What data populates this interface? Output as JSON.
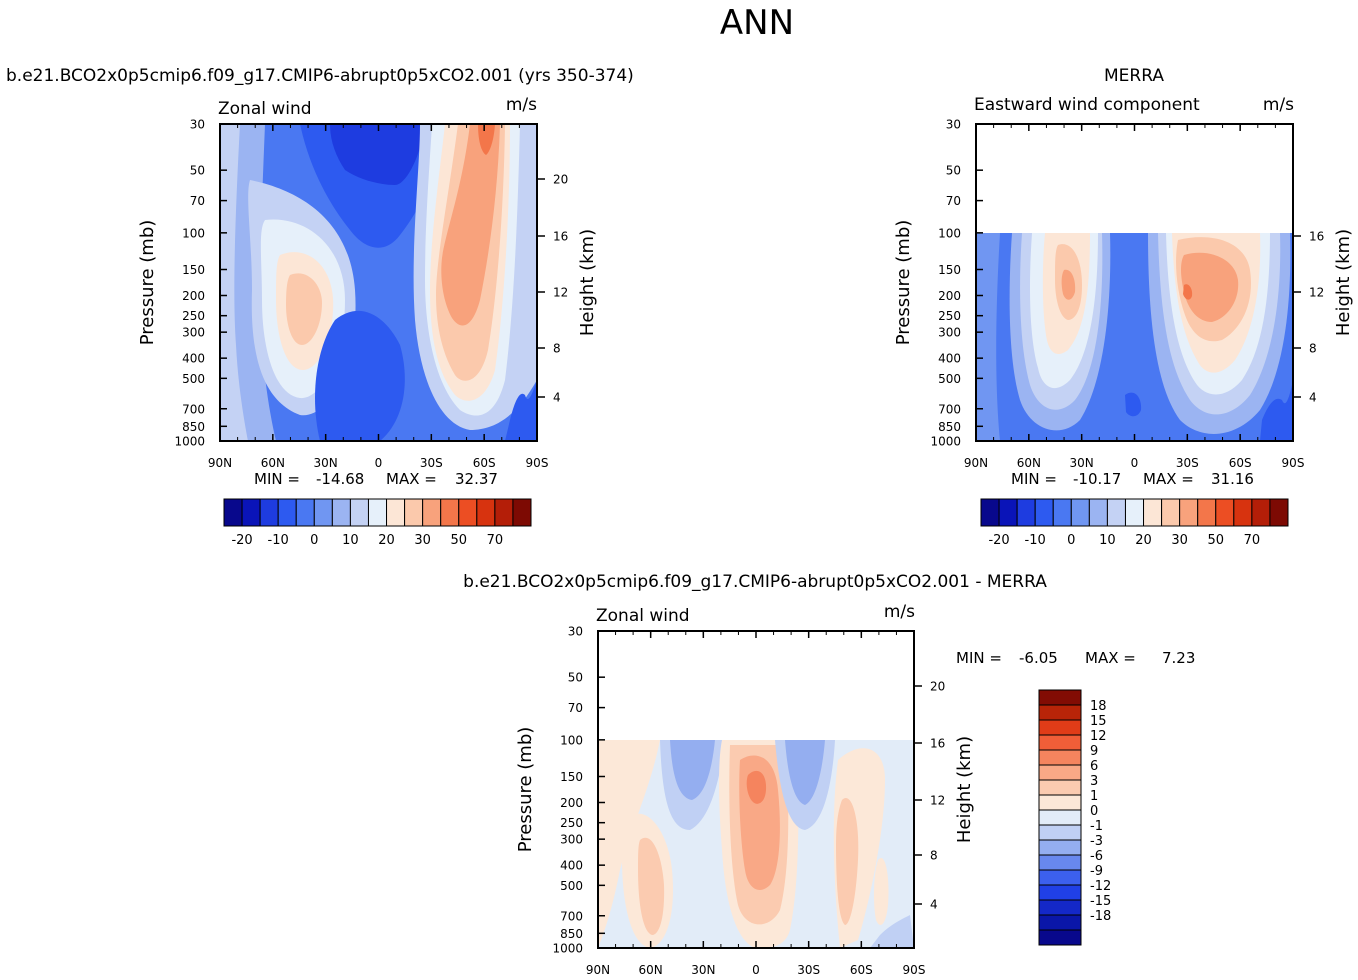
{
  "main_title": "ANN",
  "colors": {
    "left_scale": [
      "#08088c",
      "#0a14b8",
      "#1e3ce0",
      "#2d5af0",
      "#4a78f2",
      "#7096f2",
      "#9bb4f2",
      "#c4d2f4",
      "#e6f0fa",
      "#fce6d6",
      "#fbc9ac",
      "#f8a27c",
      "#f3764a",
      "#ec4e23",
      "#d7330f",
      "#b41e08",
      "#7d0a03"
    ],
    "diff_scale": [
      "#08088c",
      "#0a16a8",
      "#1428c8",
      "#2040e6",
      "#3c60ee",
      "#6888ee",
      "#94aef0",
      "#c0d0f4",
      "#e2ecf8",
      "#fce8d8",
      "#fbcbb0",
      "#f9a886",
      "#f5845e",
      "#f05e38",
      "#e03c18",
      "#b82408",
      "#820c04"
    ],
    "frame": "#000000"
  },
  "chart_data": [
    {
      "type": "contour",
      "name": "model",
      "title": "b.e21.BCO2x0p5cmip6.f09_g17.CMIP6-abrupt0p5xCO2.001 (yrs 350-374)",
      "subtitle_left": "Zonal wind",
      "subtitle_right": "m/s",
      "xlabel": "",
      "ylabel": "Pressure (mb)",
      "ylabel_right": "Height (km)",
      "x_ticks": [
        "90N",
        "60N",
        "30N",
        "0",
        "30S",
        "60S",
        "90S"
      ],
      "y_ticks": [
        "30",
        "50",
        "70",
        "100",
        "150",
        "200",
        "250",
        "300",
        "400",
        "500",
        "700",
        "850",
        "1000"
      ],
      "height_ticks": [
        "20",
        "16",
        "12",
        "8",
        "4"
      ],
      "min_label": "MIN =",
      "min_value": "-14.68",
      "max_label": "MAX =",
      "max_value": "32.37",
      "colorbar_labels": [
        "-20",
        "-10",
        "0",
        "10",
        "20",
        "30",
        "50",
        "70"
      ],
      "jets": [
        {
          "lat": -45,
          "p": 200,
          "max": 32.37
        },
        {
          "lat": 30,
          "p": 200,
          "max": 22
        }
      ]
    },
    {
      "type": "contour",
      "name": "obs",
      "title": "MERRA",
      "subtitle_left": "Eastward wind component",
      "subtitle_right": "m/s",
      "ylabel": "Pressure (mb)",
      "ylabel_right": "Height (km)",
      "x_ticks": [
        "90N",
        "60N",
        "30N",
        "0",
        "30S",
        "60S",
        "90S"
      ],
      "y_ticks": [
        "30",
        "50",
        "70",
        "100",
        "150",
        "200",
        "250",
        "300",
        "400",
        "500",
        "700",
        "850",
        "1000"
      ],
      "height_ticks": [
        "16",
        "12",
        "8",
        "4"
      ],
      "min_label": "MIN =",
      "min_value": "-10.17",
      "max_label": "MAX =",
      "max_value": "31.16",
      "colorbar_labels": [
        "-20",
        "-10",
        "0",
        "10",
        "20",
        "30",
        "50",
        "70"
      ],
      "data_top_p": 100
    },
    {
      "type": "contour",
      "name": "difference",
      "title": "b.e21.BCO2x0p5cmip6.f09_g17.CMIP6-abrupt0p5xCO2.001 - MERRA",
      "subtitle_left": "Zonal wind",
      "subtitle_right": "m/s",
      "ylabel": "Pressure (mb)",
      "ylabel_right": "Height (km)",
      "x_ticks": [
        "90N",
        "60N",
        "30N",
        "0",
        "30S",
        "60S",
        "90S"
      ],
      "y_ticks": [
        "30",
        "50",
        "70",
        "100",
        "150",
        "200",
        "250",
        "300",
        "400",
        "500",
        "700",
        "850",
        "1000"
      ],
      "height_ticks": [
        "20",
        "16",
        "12",
        "8",
        "4"
      ],
      "min_label": "MIN =",
      "min_value": "-6.05",
      "max_label": "MAX =",
      "max_value": "7.23",
      "colorbar_labels": [
        "18",
        "15",
        "12",
        "9",
        "6",
        "3",
        "1",
        "0",
        "-1",
        "-3",
        "-6",
        "-9",
        "-12",
        "-15",
        "-18"
      ],
      "data_top_p": 100
    }
  ]
}
